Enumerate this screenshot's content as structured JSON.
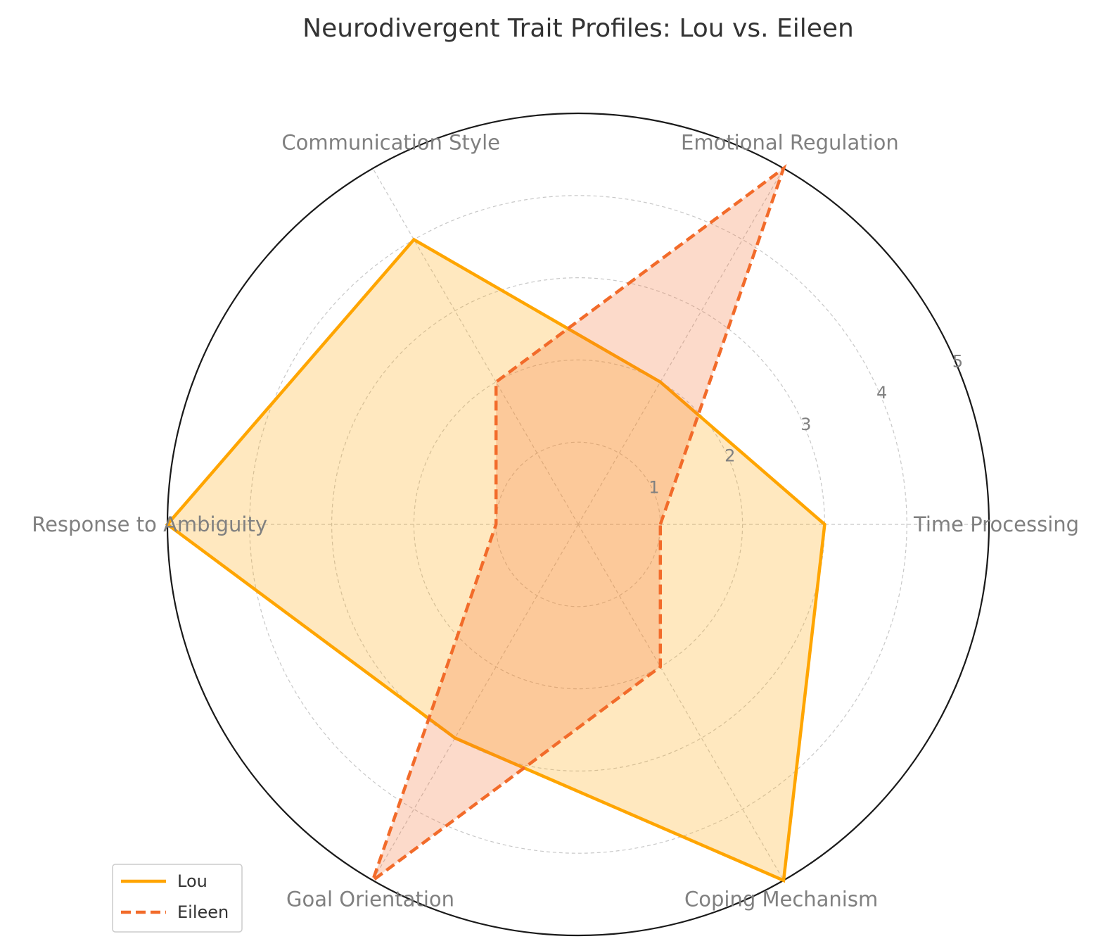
{
  "chart_data": {
    "type": "radar",
    "title": "Neurodivergent Trait Profiles: Lou vs. Eileen",
    "categories": [
      "Time Processing",
      "Emotional Regulation",
      "Communication Style",
      "Response to Ambiguity",
      "Goal Orientation",
      "Coping Mechanism"
    ],
    "r_ticks": [
      "1",
      "2",
      "3",
      "4",
      "5"
    ],
    "rlim": [
      0,
      5
    ],
    "grid": true,
    "legend_position": "lower-left",
    "series": [
      {
        "name": "Lou",
        "values": [
          3,
          2,
          4,
          5,
          3,
          5
        ],
        "color": "#FFA500",
        "line_style": "solid"
      },
      {
        "name": "Eileen",
        "values": [
          1,
          5,
          2,
          1,
          5,
          2
        ],
        "color": "#F26B2A",
        "line_style": "dashed"
      }
    ]
  }
}
